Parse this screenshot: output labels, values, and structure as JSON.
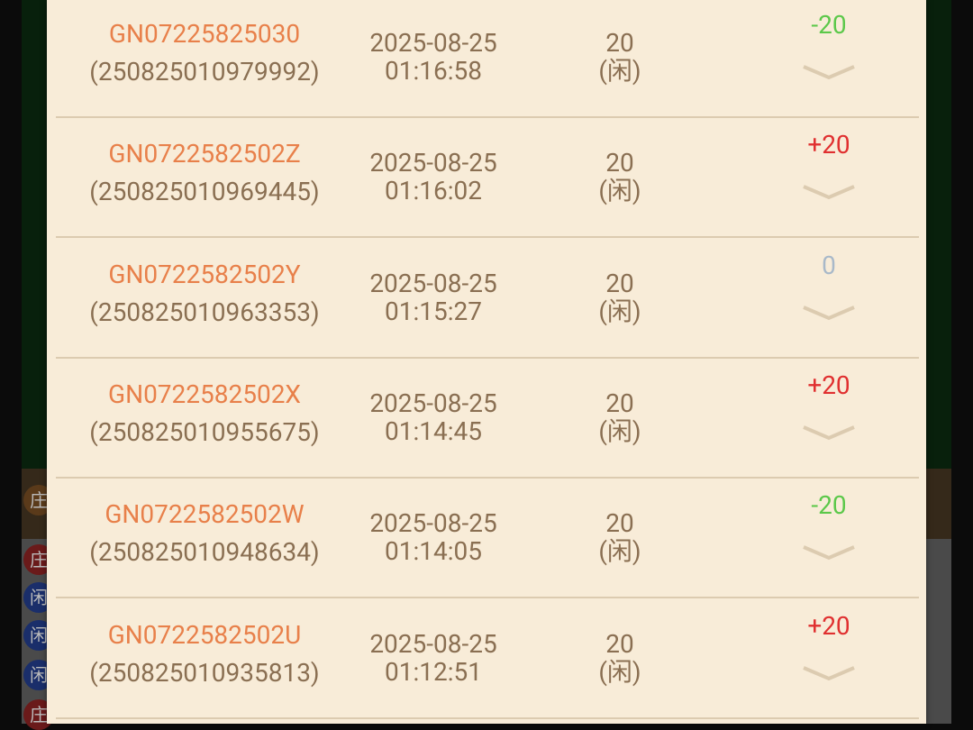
{
  "background_badges": [
    "庄",
    "庄",
    "闲",
    "闲",
    "闲",
    "庄"
  ],
  "colors": {
    "win": "#e03030",
    "lose": "#5cc84a",
    "zero": "#a9b9c9"
  },
  "rows": [
    {
      "game_id": "GN07225825030",
      "order_id": "(250825010979992)",
      "date": "2025-08-25",
      "time": "01:16:58",
      "amount": "20",
      "side": "(闲)",
      "result": "-20",
      "status": "lose"
    },
    {
      "game_id": "GN0722582502Z",
      "order_id": "(250825010969445)",
      "date": "2025-08-25",
      "time": "01:16:02",
      "amount": "20",
      "side": "(闲)",
      "result": "+20",
      "status": "win"
    },
    {
      "game_id": "GN0722582502Y",
      "order_id": "(250825010963353)",
      "date": "2025-08-25",
      "time": "01:15:27",
      "amount": "20",
      "side": "(闲)",
      "result": "0",
      "status": "zero"
    },
    {
      "game_id": "GN0722582502X",
      "order_id": "(250825010955675)",
      "date": "2025-08-25",
      "time": "01:14:45",
      "amount": "20",
      "side": "(闲)",
      "result": "+20",
      "status": "win"
    },
    {
      "game_id": "GN0722582502W",
      "order_id": "(250825010948634)",
      "date": "2025-08-25",
      "time": "01:14:05",
      "amount": "20",
      "side": "(闲)",
      "result": "-20",
      "status": "lose"
    },
    {
      "game_id": "GN0722582502U",
      "order_id": "(250825010935813)",
      "date": "2025-08-25",
      "time": "01:12:51",
      "amount": "20",
      "side": "(闲)",
      "result": "+20",
      "status": "win"
    }
  ]
}
